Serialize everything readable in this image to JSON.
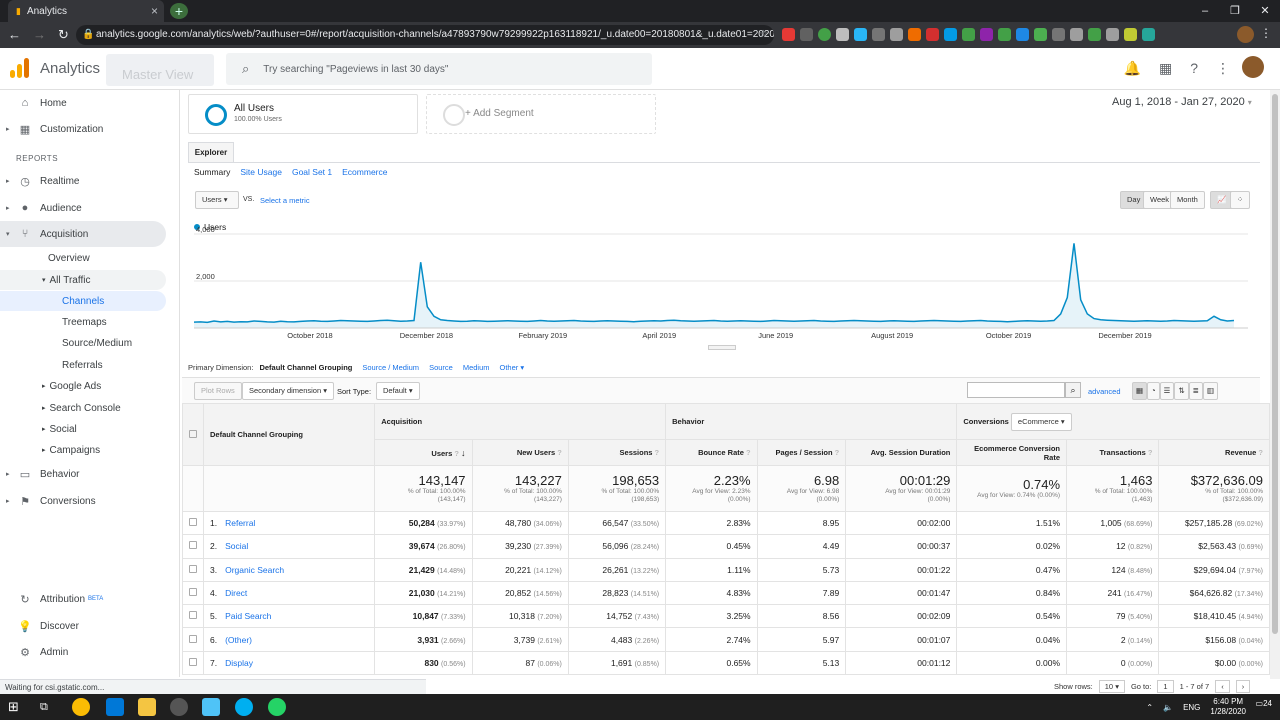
{
  "browser": {
    "tab_title": "Analytics",
    "url": "analytics.google.com/analytics/web/?authuser=0#/report/acquisition-channels/a47893790w79299922p163118921/_u.date00=20180801&_u.date01=202001...",
    "status": "Waiting for csi.gstatic.com..."
  },
  "header": {
    "app_title": "Analytics",
    "account_view": "Master View",
    "search_placeholder": "Try searching \"Pageviews in last 30 days\""
  },
  "sidebar": {
    "home": "Home",
    "customization": "Customization",
    "reports_label": "REPORTS",
    "realtime": "Realtime",
    "audience": "Audience",
    "acquisition": "Acquisition",
    "overview": "Overview",
    "all_traffic": "All Traffic",
    "channels": "Channels",
    "treemaps": "Treemaps",
    "source_medium": "Source/Medium",
    "referrals": "Referrals",
    "google_ads": "Google Ads",
    "search_console": "Search Console",
    "social": "Social",
    "campaigns": "Campaigns",
    "behavior": "Behavior",
    "conversions": "Conversions",
    "attribution": "Attribution",
    "attribution_badge": "BETA",
    "discover": "Discover",
    "admin": "Admin"
  },
  "segments": {
    "all_users": "All Users",
    "all_users_pct": "100.00% Users",
    "add_segment": "+ Add Segment"
  },
  "date_range": "Aug 1, 2018 - Jan 27, 2020",
  "explorer": {
    "tab": "Explorer",
    "subtabs": [
      "Summary",
      "Site Usage",
      "Goal Set 1",
      "Ecommerce"
    ],
    "metric": "Users",
    "vs": "VS.",
    "select_metric": "Select a metric",
    "granularity": [
      "Day",
      "Week",
      "Month"
    ]
  },
  "chart_data": {
    "type": "area",
    "series": [
      {
        "name": "Users",
        "values": [
          250,
          260,
          240,
          300,
          260,
          280,
          250,
          270,
          260,
          300,
          280,
          260,
          250,
          290,
          270,
          260,
          280,
          300,
          310,
          290,
          280,
          300,
          320,
          310,
          300,
          290,
          280,
          300,
          320,
          330,
          310,
          290,
          300,
          320,
          2800,
          900,
          500,
          350,
          320,
          300,
          280,
          290,
          310,
          300,
          280,
          290,
          300,
          310,
          300,
          290,
          280,
          300,
          320,
          300,
          290,
          300,
          310,
          320,
          300,
          290,
          280,
          300,
          310,
          300,
          290,
          280,
          270,
          290,
          300,
          310,
          300,
          320,
          330,
          310,
          300,
          290,
          300,
          310,
          320,
          300,
          290,
          300,
          310,
          300,
          290,
          280,
          300,
          320,
          310,
          300,
          290,
          300,
          310,
          320,
          300,
          290,
          280,
          300,
          310,
          320,
          310,
          300,
          290,
          280,
          300,
          310,
          300,
          290,
          280,
          300,
          310,
          320,
          310,
          300,
          290,
          280,
          300,
          310,
          320,
          300,
          290,
          280,
          270,
          280,
          300,
          310,
          300,
          290,
          300,
          320,
          600,
          1300,
          3600,
          1200,
          600,
          400,
          350,
          330,
          320,
          310,
          300,
          290,
          300,
          310,
          300,
          290,
          300,
          320,
          310,
          300,
          290,
          300,
          310,
          500,
          350,
          300,
          320
        ]
      }
    ],
    "x_labels": [
      "October 2018",
      "December 2018",
      "February 2019",
      "April 2019",
      "June 2019",
      "August 2019",
      "October 2019",
      "December 2019"
    ],
    "y_ticks": [
      "4,000",
      "2,000"
    ],
    "ylim": [
      0,
      4000
    ],
    "color": "#058dc7"
  },
  "primary_dimension": {
    "label": "Primary Dimension:",
    "selected": "Default Channel Grouping",
    "options": [
      "Source / Medium",
      "Source",
      "Medium",
      "Other"
    ]
  },
  "table_controls": {
    "plot_rows": "Plot Rows",
    "secondary_dimension": "Secondary dimension",
    "sort_type_label": "Sort Type:",
    "sort_type": "Default",
    "advanced": "advanced",
    "conversions_label": "Conversions",
    "conversions_value": "eCommerce"
  },
  "table": {
    "group_acquisition": "Acquisition",
    "group_behavior": "Behavior",
    "dimension_header": "Default Channel Grouping",
    "headers": [
      "Users",
      "New Users",
      "Sessions",
      "Bounce Rate",
      "Pages / Session",
      "Avg. Session Duration",
      "Ecommerce Conversion Rate",
      "Transactions",
      "Revenue"
    ],
    "totals": [
      {
        "v": "143,147",
        "s1": "% of Total: 100.00%",
        "s2": "(143,147)"
      },
      {
        "v": "143,227",
        "s1": "% of Total: 100.00%",
        "s2": "(143,227)"
      },
      {
        "v": "198,653",
        "s1": "% of Total: 100.00%",
        "s2": "(198,653)"
      },
      {
        "v": "2.23%",
        "s1": "Avg for View: 2.23%",
        "s2": "(0.00%)"
      },
      {
        "v": "6.98",
        "s1": "Avg for View: 6.98",
        "s2": "(0.00%)"
      },
      {
        "v": "00:01:29",
        "s1": "Avg for View: 00:01:29",
        "s2": "(0.00%)"
      },
      {
        "v": "0.74%",
        "s1": "Avg for View: 0.74% (0.00%)",
        "s2": ""
      },
      {
        "v": "1,463",
        "s1": "% of Total: 100.00%",
        "s2": "(1,463)"
      },
      {
        "v": "$372,636.09",
        "s1": "% of Total: 100.00%",
        "s2": "($372,636.09)"
      }
    ],
    "rows": [
      {
        "idx": "1.",
        "name": "Referral",
        "users": "50,284",
        "users_pct": "(33.97%)",
        "new": "48,780",
        "new_pct": "(34.06%)",
        "sess": "66,547",
        "sess_pct": "(33.50%)",
        "bounce": "2.83%",
        "pps": "8.95",
        "dur": "00:02:00",
        "conv": "1.51%",
        "tx": "1,005",
        "tx_pct": "(68.69%)",
        "rev": "$257,185.28",
        "rev_pct": "(69.02%)"
      },
      {
        "idx": "2.",
        "name": "Social",
        "users": "39,674",
        "users_pct": "(26.80%)",
        "new": "39,230",
        "new_pct": "(27.39%)",
        "sess": "56,096",
        "sess_pct": "(28.24%)",
        "bounce": "0.45%",
        "pps": "4.49",
        "dur": "00:00:37",
        "conv": "0.02%",
        "tx": "12",
        "tx_pct": "(0.82%)",
        "rev": "$2,563.43",
        "rev_pct": "(0.69%)"
      },
      {
        "idx": "3.",
        "name": "Organic Search",
        "users": "21,429",
        "users_pct": "(14.48%)",
        "new": "20,221",
        "new_pct": "(14.12%)",
        "sess": "26,261",
        "sess_pct": "(13.22%)",
        "bounce": "1.11%",
        "pps": "5.73",
        "dur": "00:01:22",
        "conv": "0.47%",
        "tx": "124",
        "tx_pct": "(8.48%)",
        "rev": "$29,694.04",
        "rev_pct": "(7.97%)"
      },
      {
        "idx": "4.",
        "name": "Direct",
        "users": "21,030",
        "users_pct": "(14.21%)",
        "new": "20,852",
        "new_pct": "(14.56%)",
        "sess": "28,823",
        "sess_pct": "(14.51%)",
        "bounce": "4.83%",
        "pps": "7.89",
        "dur": "00:01:47",
        "conv": "0.84%",
        "tx": "241",
        "tx_pct": "(16.47%)",
        "rev": "$64,626.82",
        "rev_pct": "(17.34%)"
      },
      {
        "idx": "5.",
        "name": "Paid Search",
        "users": "10,847",
        "users_pct": "(7.33%)",
        "new": "10,318",
        "new_pct": "(7.20%)",
        "sess": "14,752",
        "sess_pct": "(7.43%)",
        "bounce": "3.25%",
        "pps": "8.56",
        "dur": "00:02:09",
        "conv": "0.54%",
        "tx": "79",
        "tx_pct": "(5.40%)",
        "rev": "$18,410.45",
        "rev_pct": "(4.94%)"
      },
      {
        "idx": "6.",
        "name": "(Other)",
        "users": "3,931",
        "users_pct": "(2.66%)",
        "new": "3,739",
        "new_pct": "(2.61%)",
        "sess": "4,483",
        "sess_pct": "(2.26%)",
        "bounce": "2.74%",
        "pps": "5.97",
        "dur": "00:01:07",
        "conv": "0.04%",
        "tx": "2",
        "tx_pct": "(0.14%)",
        "rev": "$156.08",
        "rev_pct": "(0.04%)"
      },
      {
        "idx": "7.",
        "name": "Display",
        "users": "830",
        "users_pct": "(0.56%)",
        "new": "87",
        "new_pct": "(0.06%)",
        "sess": "1,691",
        "sess_pct": "(0.85%)",
        "bounce": "0.65%",
        "pps": "5.13",
        "dur": "00:01:12",
        "conv": "0.00%",
        "tx": "0",
        "tx_pct": "(0.00%)",
        "rev": "$0.00",
        "rev_pct": "(0.00%)"
      }
    ]
  },
  "pager": {
    "show_rows_label": "Show rows:",
    "show_rows": "10",
    "goto_label": "Go to:",
    "goto": "1",
    "range": "1 - 7 of 7"
  },
  "taskbar": {
    "lang": "ENG",
    "time": "6:40 PM",
    "date": "1/28/2020",
    "notifications": "24"
  },
  "colors": {
    "accent": "#1a73e8",
    "chart_line": "#058dc7",
    "ga_orange": "#f9ab00"
  }
}
